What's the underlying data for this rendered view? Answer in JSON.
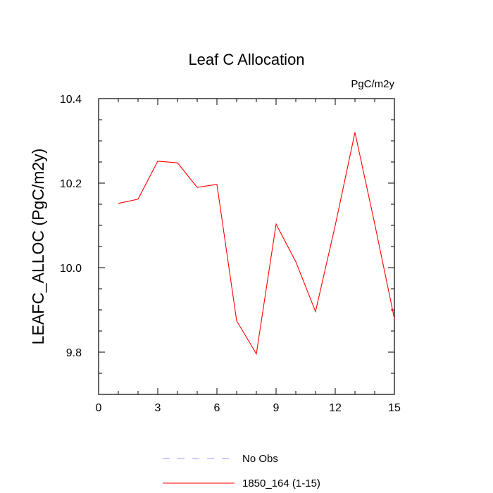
{
  "chart_data": {
    "type": "line",
    "title": "Leaf C Allocation",
    "units_label": "PgC/m2y",
    "xlabel": "",
    "ylabel": "LEAFC_ALLOC  (PgC/m2y)",
    "xlim": [
      0,
      15
    ],
    "ylim": [
      9.7,
      10.4
    ],
    "x_ticks": [
      0,
      3,
      6,
      9,
      12,
      15
    ],
    "x_tick_labels": [
      "0",
      "3",
      "6",
      "9",
      "12",
      "15"
    ],
    "y_ticks": [
      9.8,
      10.0,
      10.2,
      10.4
    ],
    "y_tick_labels": [
      "9.8",
      "10.0",
      "10.2",
      "10.4"
    ],
    "grid": false,
    "legend_position": "bottom",
    "series": [
      {
        "name": "1850_164 (1-15)",
        "color": "#ff0000",
        "style": "solid",
        "x": [
          1,
          2,
          3,
          4,
          5,
          6,
          7,
          8,
          9,
          10,
          11,
          12,
          13,
          14,
          15
        ],
        "y": [
          10.152,
          10.162,
          10.252,
          10.248,
          10.19,
          10.197,
          9.874,
          9.796,
          10.103,
          10.014,
          9.896,
          10.1,
          10.32,
          10.104,
          9.879
        ]
      }
    ],
    "legend": [
      {
        "label": "No Obs",
        "color": "#9999ff",
        "style": "dashed"
      },
      {
        "label": "1850_164 (1-15)",
        "color": "#ff0000",
        "style": "solid"
      }
    ]
  }
}
